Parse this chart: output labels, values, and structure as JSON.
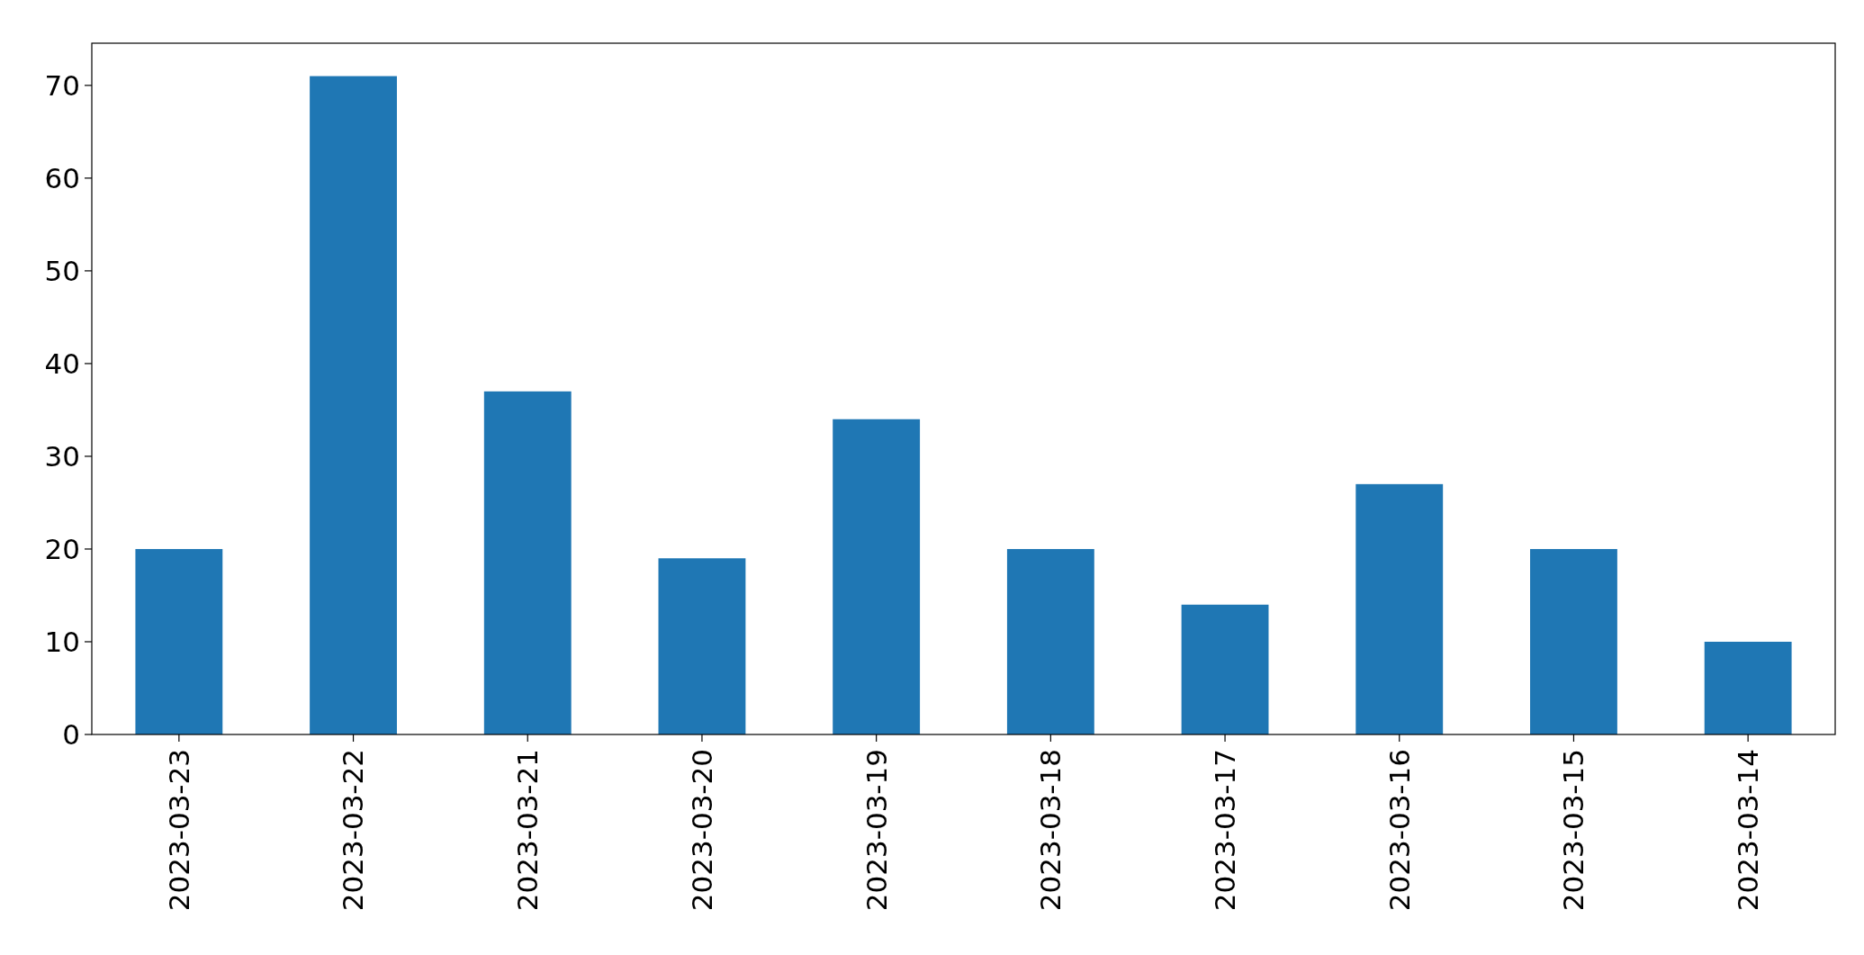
{
  "chart_data": {
    "type": "bar",
    "categories": [
      "2023-03-23",
      "2023-03-22",
      "2023-03-21",
      "2023-03-20",
      "2023-03-19",
      "2023-03-18",
      "2023-03-17",
      "2023-03-16",
      "2023-03-15",
      "2023-03-14"
    ],
    "values": [
      20,
      71,
      37,
      19,
      34,
      20,
      14,
      27,
      20,
      10
    ],
    "color": "#1f77b4",
    "ylim": [
      0,
      74.55
    ],
    "yticks": [
      0,
      10,
      20,
      30,
      40,
      50,
      60,
      70
    ],
    "grid": false
  }
}
